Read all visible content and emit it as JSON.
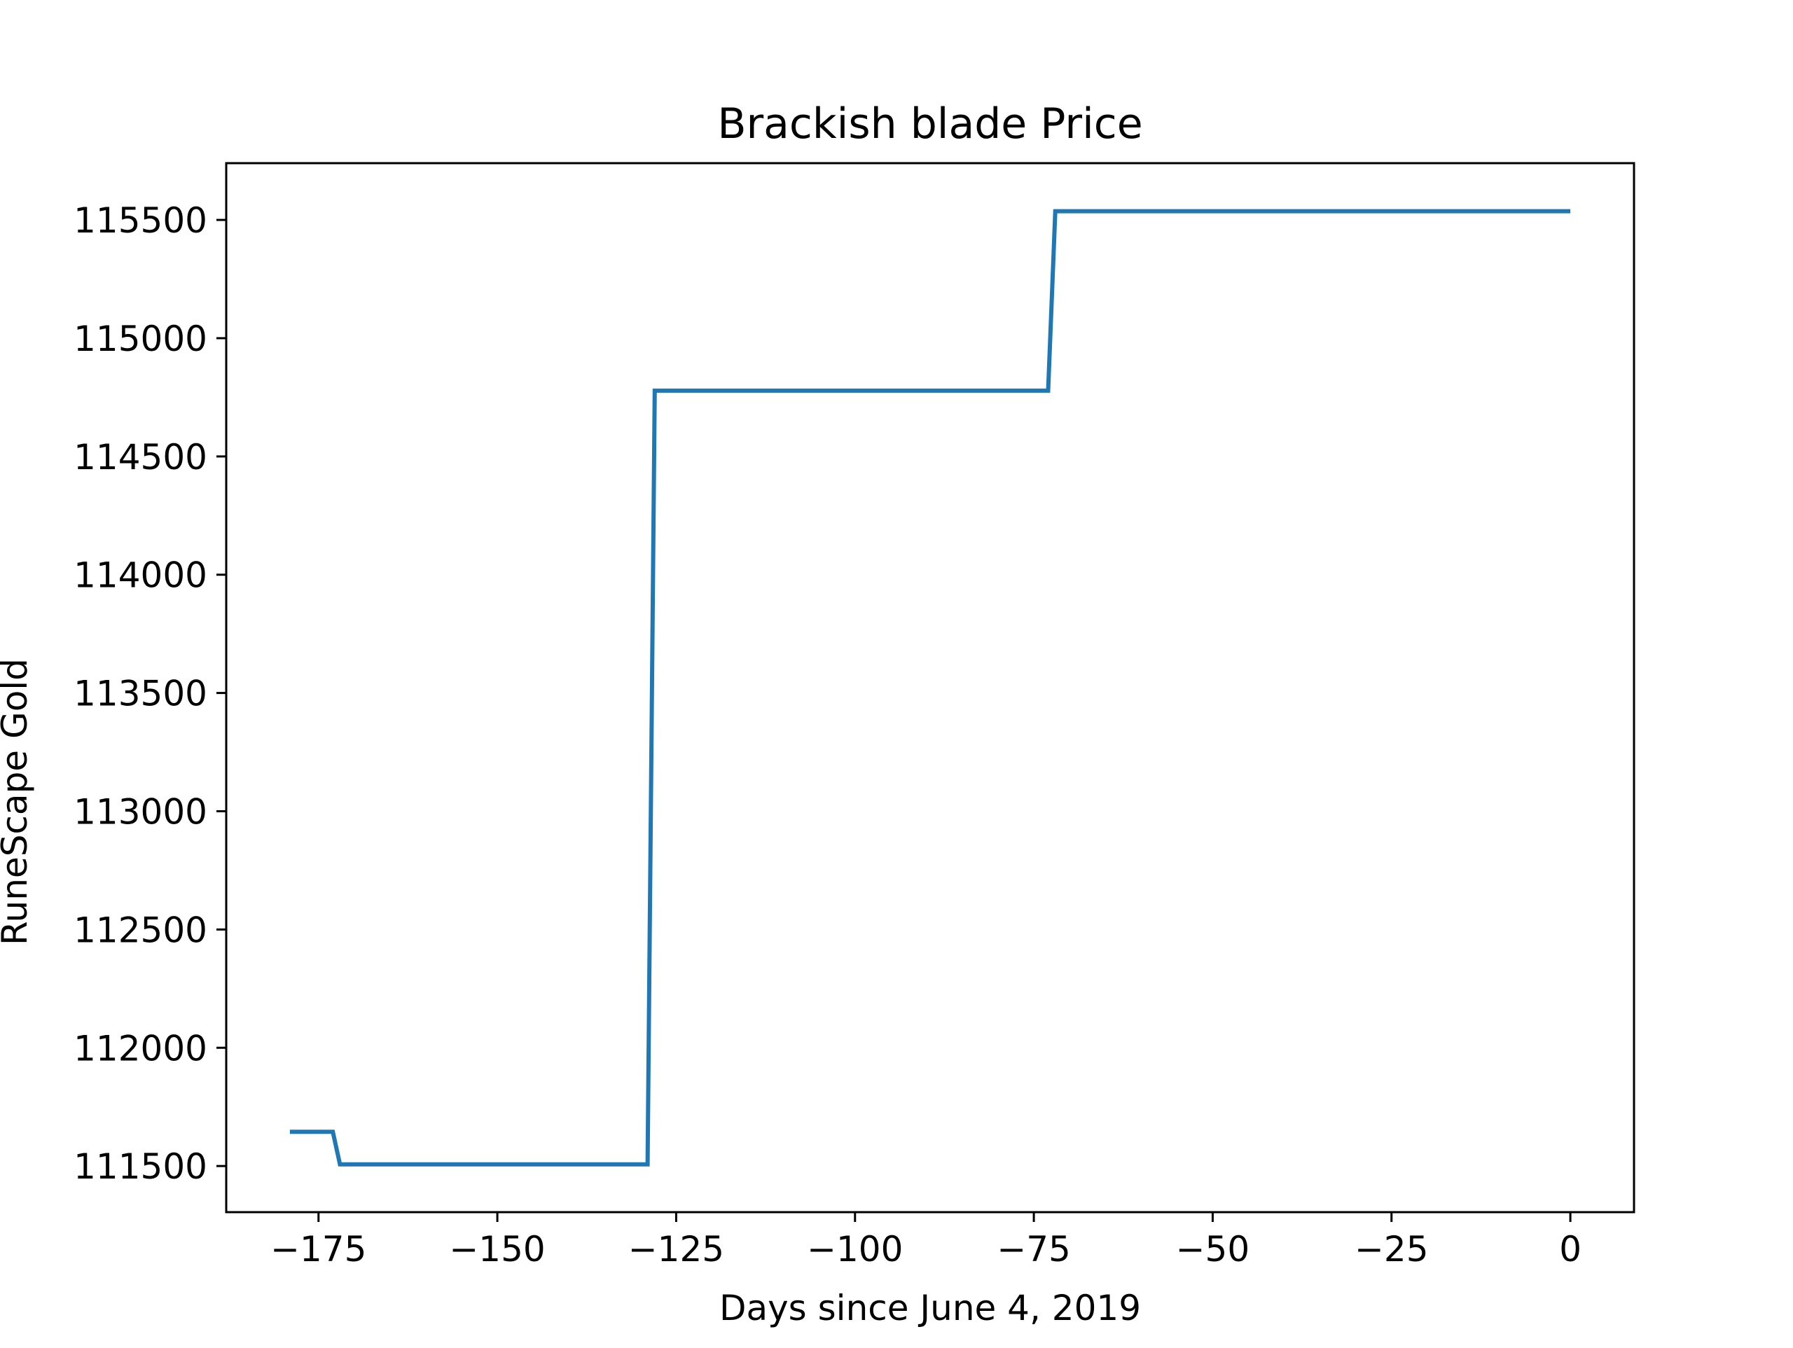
{
  "chart_data": {
    "type": "line",
    "title": "Brackish blade Price",
    "xlabel": "Days since June 4, 2019",
    "ylabel": "RuneScape Gold",
    "xlim": [
      -187.9,
      8.9
    ],
    "ylim": [
      111305,
      115740
    ],
    "xticks": [
      -175,
      -150,
      -125,
      -100,
      -75,
      -50,
      -25,
      0
    ],
    "xtick_labels": [
      "−175",
      "−150",
      "−125",
      "−100",
      "−75",
      "−50",
      "−25",
      "0"
    ],
    "yticks": [
      111500,
      112000,
      112500,
      113000,
      113500,
      114000,
      114500,
      115000,
      115500
    ],
    "ytick_labels": [
      "111500",
      "112000",
      "112500",
      "113000",
      "113500",
      "114000",
      "114500",
      "115000",
      "115500"
    ],
    "grid": false,
    "legend": "none",
    "series": [
      {
        "color": "#1f77b4",
        "x": [
          -179,
          -173,
          -172,
          -129,
          -128,
          -73,
          -72,
          0
        ],
        "y": [
          111645,
          111645,
          111507,
          111507,
          114778,
          114778,
          115537,
          115537
        ]
      }
    ]
  }
}
